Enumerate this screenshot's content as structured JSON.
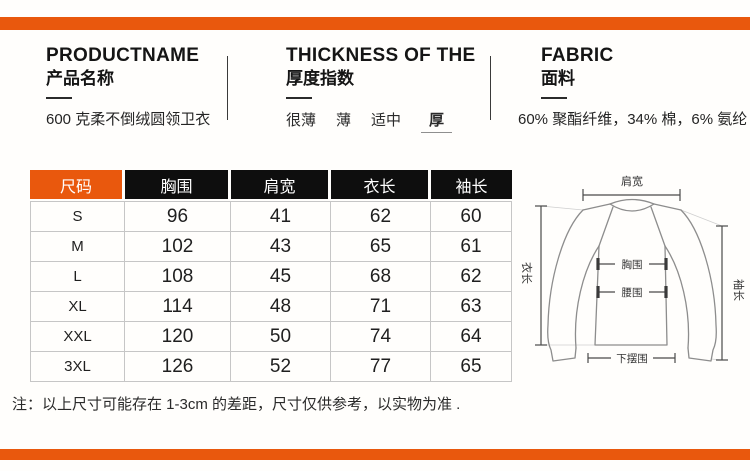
{
  "colors": {
    "accent": "#E9580D",
    "table_header_bg": "#0E0E0E"
  },
  "header": {
    "product": {
      "title_en": "PRODUCTNAME",
      "title_cn": "产品名称",
      "value": "600 克柔不倒绒圆领卫衣"
    },
    "thickness": {
      "title_en": "THICKNESS OF THE",
      "title_cn": "厚度指数",
      "options": [
        "很薄",
        "薄",
        "适中",
        "厚"
      ],
      "selected": "厚"
    },
    "fabric": {
      "title_en": "FABRIC",
      "title_cn": "面料",
      "value": "60% 聚酯纤维，34% 棉，6% 氨纶"
    }
  },
  "size_table": {
    "columns": [
      "尺码",
      "胸围",
      "肩宽",
      "衣长",
      "袖长"
    ],
    "rows": [
      [
        "S",
        "96",
        "41",
        "62",
        "60"
      ],
      [
        "M",
        "102",
        "43",
        "65",
        "61"
      ],
      [
        "L",
        "108",
        "45",
        "68",
        "62"
      ],
      [
        "XL",
        "114",
        "48",
        "71",
        "63"
      ],
      [
        "XXL",
        "120",
        "50",
        "74",
        "64"
      ],
      [
        "3XL",
        "126",
        "52",
        "77",
        "65"
      ]
    ]
  },
  "diagram": {
    "shoulder_label": "肩宽",
    "length_label": "衣长",
    "sleeve_label": "袖长",
    "chest_label": "胸围",
    "waist_label": "腰围",
    "hem_label": "下摆围"
  },
  "note": "注：以上尺寸可能存在 1-3cm 的差距，尺寸仅供参考，以实物为准 ."
}
